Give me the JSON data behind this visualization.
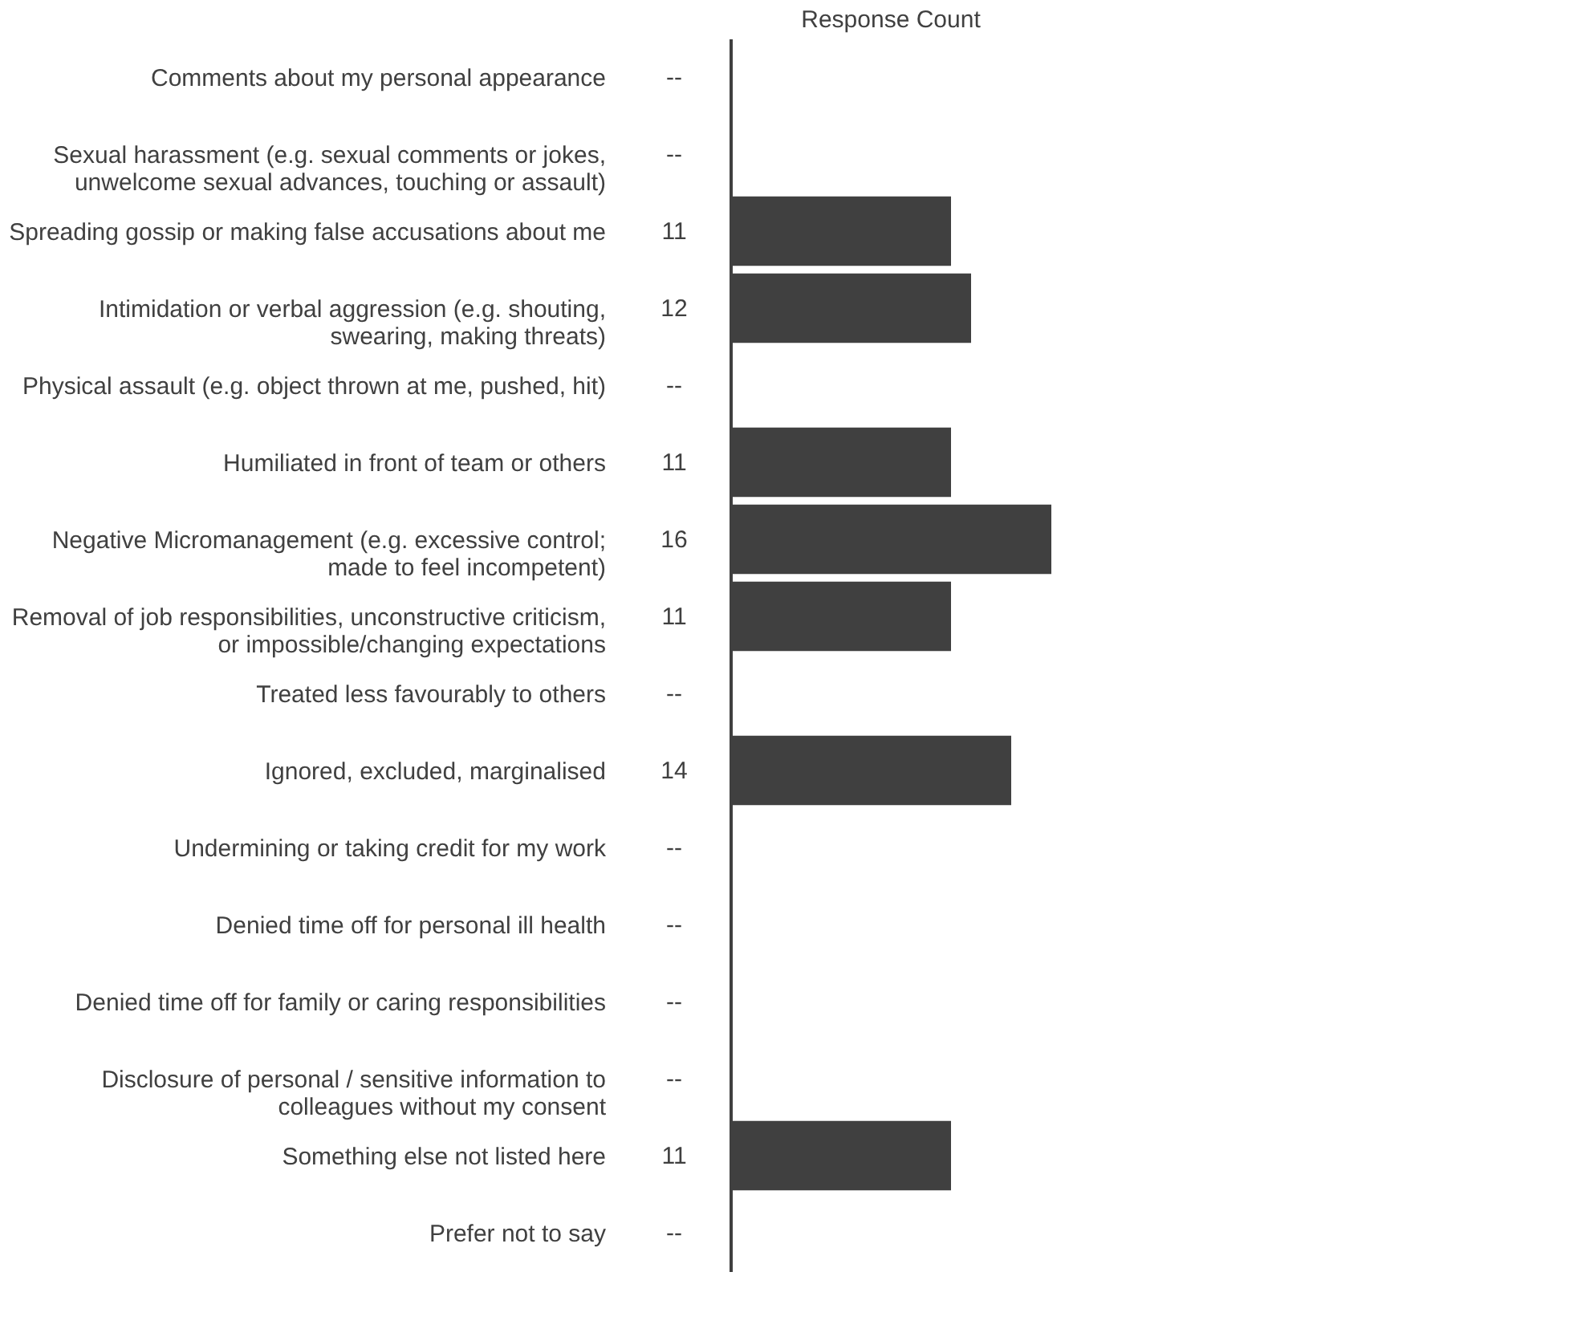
{
  "chart_data": {
    "type": "bar",
    "orientation": "horizontal",
    "title": "Response Count",
    "categories": [
      "Comments about my personal appearance",
      "Sexual harassment (e.g. sexual comments or jokes,\nunwelcome sexual advances, touching or assault)",
      "Spreading gossip or making false accusations about me",
      "Intimidation or verbal aggression (e.g. shouting,\nswearing, making threats)",
      "Physical assault (e.g. object thrown at me, pushed, hit)",
      "Humiliated in front of team or others",
      "Negative Micromanagement (e.g. excessive control;\nmade to feel incompetent)",
      "Removal of job responsibilities, unconstructive criticism,\nor impossible/changing expectations",
      "Treated less favourably to others",
      "Ignored, excluded, marginalised",
      "Undermining or taking credit for my work",
      "Denied time off for personal ill health",
      "Denied time off for family or caring responsibilities",
      "Disclosure of personal / sensitive information to\ncolleagues without my consent",
      "Something else not listed here",
      "Prefer not to say"
    ],
    "values": [
      null,
      null,
      11,
      12,
      null,
      11,
      16,
      11,
      null,
      14,
      null,
      null,
      null,
      null,
      11,
      null
    ],
    "value_labels": [
      "--",
      "--",
      "11",
      "12",
      "--",
      "11",
      "16",
      "11",
      "--",
      "14",
      "--",
      "--",
      "--",
      "--",
      "11",
      "--"
    ],
    "color": "#404040",
    "grid": false
  }
}
